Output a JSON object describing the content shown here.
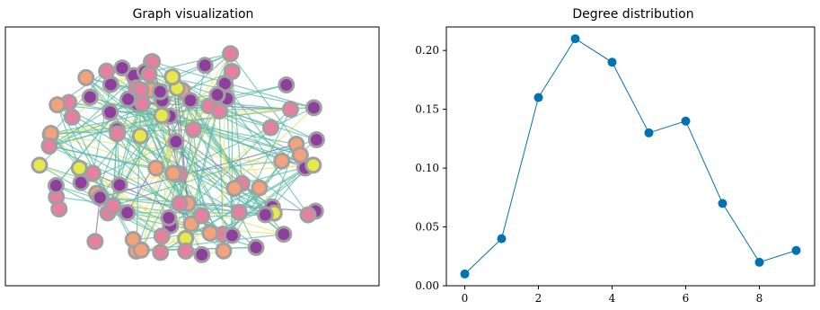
{
  "charts": [
    {
      "type": "network",
      "title": "Graph visualization",
      "node_count": 100,
      "edge_colors": [
        "#5fb9a8",
        "#e8e26a",
        "#7b6fb0"
      ],
      "node_colors": [
        "#e87fa0",
        "#8e3f9e",
        "#f4a27c",
        "#e6e84c",
        "#5a2e91"
      ],
      "node_border": "#a0a0a0"
    },
    {
      "type": "line",
      "title": "Degree distribution",
      "x": [
        0,
        1,
        2,
        3,
        4,
        5,
        6,
        7,
        8,
        9
      ],
      "y": [
        0.01,
        0.04,
        0.16,
        0.21,
        0.19,
        0.13,
        0.14,
        0.07,
        0.02,
        0.03
      ],
      "xticks": [
        "0",
        "2",
        "4",
        "6",
        "8"
      ],
      "yticks": [
        "0.00",
        "0.05",
        "0.10",
        "0.15",
        "0.20"
      ],
      "xlim": [
        -0.5,
        9.5
      ],
      "ylim": [
        0,
        0.22
      ],
      "color": "#0072b2"
    }
  ]
}
